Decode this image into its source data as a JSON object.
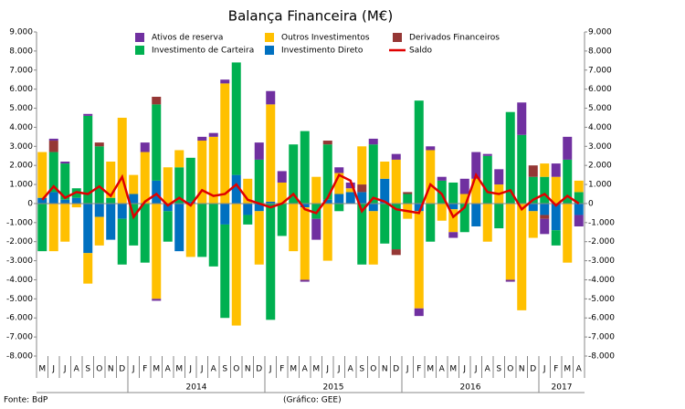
{
  "chart_data": {
    "type": "bar",
    "title": "Balança Financeira (M€)",
    "categories": [
      "M",
      "J",
      "J",
      "A",
      "S",
      "O",
      "N",
      "D",
      "J",
      "F",
      "M",
      "A",
      "M",
      "J",
      "J",
      "A",
      "S",
      "O",
      "N",
      "D",
      "J",
      "F",
      "M",
      "A",
      "M",
      "J",
      "J",
      "A",
      "S",
      "O",
      "N",
      "D",
      "J",
      "F",
      "M",
      "A",
      "M",
      "J",
      "J",
      "A",
      "S",
      "O",
      "N",
      "D",
      "J",
      "F",
      "M",
      "A"
    ],
    "year_labels": [
      "2014",
      "2015",
      "2016",
      "2017"
    ],
    "stacked": true,
    "series": [
      {
        "name": "Ativos de reserva",
        "color": "#7030a0",
        "values": [
          0,
          100,
          100,
          0,
          100,
          0,
          0,
          0,
          0,
          500,
          -100,
          0,
          0,
          0,
          200,
          200,
          200,
          0,
          0,
          900,
          700,
          600,
          0,
          -100,
          -1100,
          0,
          300,
          300,
          0,
          300,
          0,
          300,
          0,
          -400,
          200,
          200,
          -300,
          800,
          1400,
          100,
          800,
          -100,
          1700,
          0,
          -800,
          700,
          1200,
          -600
        ]
      },
      {
        "name": "Outros Investimentos",
        "color": "#ffc000",
        "values": [
          2400,
          -2500,
          -2000,
          -200,
          -1600,
          -1500,
          1900,
          4500,
          1000,
          2700,
          -5000,
          1900,
          900,
          -2800,
          3300,
          3500,
          6300,
          -6400,
          1300,
          -2800,
          5100,
          1100,
          -2500,
          -3800,
          1400,
          -3000,
          1100,
          200,
          2000,
          -2800,
          900,
          2300,
          -800,
          -5100,
          2800,
          -900,
          -1200,
          500,
          1300,
          -2000,
          1000,
          -4000,
          -5600,
          -1400,
          700,
          1400,
          -3100,
          600
        ]
      },
      {
        "name": "Derivados Financeiros",
        "color": "#953735",
        "values": [
          0,
          600,
          0,
          0,
          0,
          200,
          0,
          0,
          0,
          0,
          400,
          0,
          0,
          0,
          0,
          0,
          0,
          0,
          0,
          0,
          0,
          0,
          0,
          0,
          0,
          200,
          0,
          0,
          400,
          0,
          0,
          -300,
          100,
          0,
          0,
          0,
          0,
          0,
          0,
          0,
          0,
          0,
          0,
          600,
          -200,
          0,
          0,
          0
        ]
      },
      {
        "name": "Investimento de Carteira",
        "color": "#00b050",
        "values": [
          -2500,
          2100,
          1900,
          500,
          4600,
          3000,
          300,
          -2400,
          -2200,
          -3100,
          4000,
          -1600,
          1900,
          2300,
          -2800,
          -3300,
          -4900,
          5900,
          -500,
          2300,
          -6100,
          -1700,
          3100,
          3800,
          -800,
          2900,
          -400,
          0,
          -3200,
          3100,
          -2100,
          -2400,
          500,
          5400,
          -2000,
          1200,
          1100,
          -1500,
          0,
          2500,
          -1300,
          4800,
          3600,
          1400,
          1400,
          -800,
          2300,
          600
        ]
      },
      {
        "name": "Investimento Direto",
        "color": "#0070c0",
        "values": [
          300,
          600,
          200,
          300,
          -2600,
          -700,
          -1900,
          -800,
          500,
          0,
          1200,
          -400,
          -2500,
          100,
          0,
          0,
          -1100,
          1500,
          -600,
          -400,
          100,
          0,
          0,
          -200,
          0,
          200,
          500,
          600,
          600,
          -400,
          1300,
          0,
          0,
          -400,
          0,
          0,
          -300,
          0,
          -1200,
          0,
          0,
          0,
          0,
          -400,
          -600,
          -1400,
          0,
          -600
        ]
      },
      {
        "name": "Saldo",
        "color": "#e00000",
        "type": "line",
        "axis": "y2",
        "values": [
          200,
          900,
          300,
          600,
          500,
          900,
          400,
          1400,
          -700,
          100,
          500,
          -100,
          300,
          -100,
          700,
          400,
          500,
          1000,
          200,
          0,
          -200,
          0,
          500,
          -300,
          -500,
          300,
          1500,
          1200,
          -400,
          300,
          100,
          -300,
          -400,
          -500,
          1000,
          500,
          -700,
          -200,
          1500,
          600,
          500,
          700,
          -300,
          200,
          500,
          -100,
          400,
          0
        ]
      }
    ],
    "ylim": [
      -8000,
      9000
    ],
    "yticks": [
      {
        "value": -8000,
        "label": "-8.000"
      },
      {
        "value": -7000,
        "label": "-7.000"
      },
      {
        "value": -6000,
        "label": "-6.000"
      },
      {
        "value": -5000,
        "label": "-5.000"
      },
      {
        "value": -4000,
        "label": "-4.000"
      },
      {
        "value": -3000,
        "label": "-3.000"
      },
      {
        "value": -2000,
        "label": "-2.000"
      },
      {
        "value": -1000,
        "label": "-1.000"
      },
      0,
      {
        "value": 1000,
        "label": "1.000"
      },
      {
        "value": 2000,
        "label": "2.000"
      },
      {
        "value": 3000,
        "label": "3.000"
      },
      {
        "value": 4000,
        "label": "4.000"
      },
      {
        "value": 5000,
        "label": "5.000"
      },
      {
        "value": 6000,
        "label": "6.000"
      },
      {
        "value": 7000,
        "label": "7.000"
      },
      {
        "value": 8000,
        "label": "8.000"
      },
      {
        "value": 9000,
        "label": "9.000"
      }
    ],
    "y2lim": [
      -8000,
      9000
    ],
    "y2ticks": [
      {
        "value": -8000,
        "label": "-8.000"
      },
      {
        "value": -7000,
        "label": "-7.000"
      },
      {
        "value": -6000,
        "label": "-6.000"
      },
      {
        "value": -5000,
        "label": "-5.000"
      },
      {
        "value": -4000,
        "label": "-4.000"
      },
      {
        "value": -3000,
        "label": "-3.000"
      },
      {
        "value": -2000,
        "label": "-2.000"
      },
      {
        "value": -1000,
        "label": "-1.000"
      },
      0,
      {
        "value": 1000,
        "label": "1.000"
      },
      {
        "value": 2000,
        "label": "2.000"
      },
      {
        "value": 3000,
        "label": "3.000"
      },
      {
        "value": 4000,
        "label": "4.000"
      },
      {
        "value": 5000,
        "label": "5.000"
      },
      {
        "value": 6000,
        "label": "6.000"
      },
      {
        "value": 7000,
        "label": "7.000"
      },
      {
        "value": 8000,
        "label": "8.000"
      },
      {
        "value": 9000,
        "label": "9.000"
      }
    ],
    "grid": false,
    "source": "Fonte: BdP",
    "credit": "(Gráfico: GEE)"
  }
}
